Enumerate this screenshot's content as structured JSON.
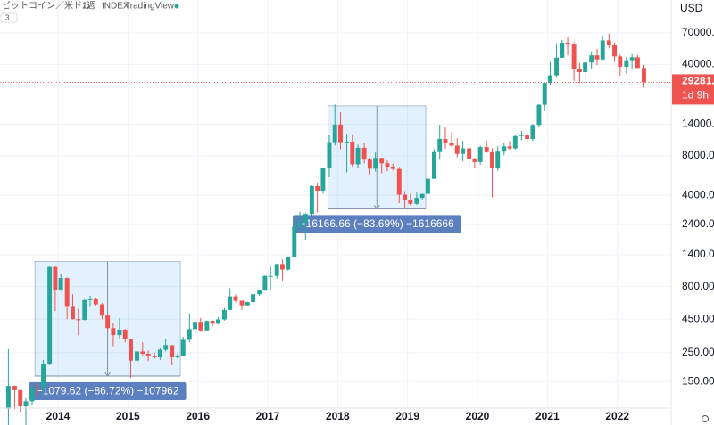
{
  "chart_data": {
    "type": "candlestick",
    "title": "ビットコイン／米ドル",
    "interval": "1週",
    "source": "INDEX",
    "publisher": "TradingView",
    "collapsed_count": 3,
    "currency": "USD",
    "countdown": "1d 9h",
    "log_y": true,
    "grid": true,
    "up_color": "#26a69a",
    "down_color": "#ef5350",
    "xlim": [
      2013.17,
      2022.77
    ],
    "ylim": [
      94,
      125000
    ],
    "xticks": [
      2014,
      2015,
      2016,
      2017,
      2018,
      2019,
      2020,
      2021,
      2022
    ],
    "yticks": [
      {
        "value": 70000,
        "label": "70000.00"
      },
      {
        "value": 40000,
        "label": "40000.00"
      },
      {
        "value": 14000,
        "label": "14000.00"
      },
      {
        "value": 8000,
        "label": "8000.00"
      },
      {
        "value": 4000,
        "label": "4000.00"
      },
      {
        "value": 2400,
        "label": "2400.00"
      },
      {
        "value": 1400,
        "label": "1400.00"
      },
      {
        "value": 800,
        "label": "800.00"
      },
      {
        "value": 450,
        "label": "450.00"
      },
      {
        "value": 250,
        "label": "250.00"
      },
      {
        "value": 150,
        "label": "150.00"
      }
    ],
    "current_price": {
      "value": 29281,
      "label": "29281.00"
    },
    "x": [
      2013.29,
      2013.38,
      2013.46,
      2013.54,
      2013.63,
      2013.71,
      2013.79,
      2013.88,
      2013.96,
      2014.04,
      2014.13,
      2014.21,
      2014.29,
      2014.38,
      2014.46,
      2014.54,
      2014.63,
      2014.71,
      2014.79,
      2014.88,
      2014.96,
      2015.04,
      2015.13,
      2015.21,
      2015.29,
      2015.38,
      2015.46,
      2015.54,
      2015.63,
      2015.71,
      2015.79,
      2015.88,
      2015.96,
      2016.04,
      2016.13,
      2016.21,
      2016.29,
      2016.38,
      2016.46,
      2016.54,
      2016.63,
      2016.71,
      2016.79,
      2016.88,
      2016.96,
      2017.04,
      2017.13,
      2017.21,
      2017.29,
      2017.38,
      2017.46,
      2017.54,
      2017.63,
      2017.71,
      2017.79,
      2017.88,
      2017.96,
      2018.04,
      2018.13,
      2018.21,
      2018.29,
      2018.38,
      2018.46,
      2018.54,
      2018.63,
      2018.71,
      2018.79,
      2018.88,
      2018.96,
      2019.04,
      2019.13,
      2019.21,
      2019.29,
      2019.38,
      2019.46,
      2019.54,
      2019.63,
      2019.71,
      2019.79,
      2019.88,
      2019.96,
      2020.04,
      2020.13,
      2020.21,
      2020.29,
      2020.38,
      2020.46,
      2020.54,
      2020.63,
      2020.71,
      2020.79,
      2020.88,
      2020.96,
      2021.04,
      2021.13,
      2021.21,
      2021.29,
      2021.38,
      2021.46,
      2021.54,
      2021.63,
      2021.71,
      2021.79,
      2021.88,
      2021.96,
      2022.04,
      2022.13,
      2022.21,
      2022.29,
      2022.38
    ],
    "open": [
      93,
      139,
      129,
      97,
      106,
      135,
      133,
      204,
      1130,
      760,
      930,
      560,
      450,
      445,
      630,
      640,
      585,
      480,
      385,
      340,
      375,
      320,
      217,
      255,
      245,
      235,
      230,
      263,
      285,
      230,
      236,
      313,
      378,
      430,
      370,
      437,
      416,
      448,
      530,
      673,
      624,
      575,
      608,
      700,
      745,
      965,
      965,
      1190,
      1080,
      1350,
      2300,
      2480,
      2875,
      4700,
      4340,
      6450,
      10200,
      13900,
      10200,
      10300,
      6900,
      9240,
      7490,
      6390,
      7730,
      7030,
      6630,
      6370,
      4040,
      3700,
      3440,
      3820,
      4100,
      5350,
      8560,
      10800,
      10100,
      9600,
      8300,
      9150,
      7550,
      7190,
      9350,
      8550,
      6420,
      8630,
      9460,
      9140,
      11350,
      11650,
      10780,
      13800,
      19700,
      28990,
      33100,
      45140,
      58800,
      57750,
      37300,
      35040,
      41460,
      47100,
      43800,
      61300,
      57000,
      46200,
      38500,
      43200,
      45500,
      37700
    ],
    "high": [
      266,
      140,
      130,
      112,
      140,
      145,
      220,
      1150,
      1160,
      1000,
      940,
      700,
      540,
      640,
      680,
      660,
      600,
      500,
      420,
      460,
      380,
      320,
      300,
      300,
      260,
      250,
      270,
      315,
      285,
      245,
      330,
      500,
      465,
      460,
      440,
      440,
      465,
      550,
      780,
      700,
      625,
      615,
      720,
      760,
      975,
      1150,
      1200,
      1290,
      1350,
      2750,
      3000,
      2920,
      4750,
      5000,
      6450,
      11500,
      19800,
      17300,
      11800,
      11700,
      9800,
      9990,
      7760,
      8500,
      7760,
      7400,
      7000,
      6600,
      4300,
      4100,
      4200,
      4100,
      5600,
      9000,
      13900,
      13200,
      12300,
      10900,
      10400,
      9500,
      7750,
      9600,
      10500,
      9200,
      9450,
      10000,
      10400,
      11450,
      12470,
      12100,
      14100,
      19900,
      29300,
      41950,
      58350,
      61800,
      64850,
      59500,
      41300,
      42400,
      50500,
      52900,
      67000,
      69000,
      59100,
      47900,
      45800,
      48200,
      47400,
      40000
    ],
    "low": [
      50,
      92,
      88,
      65,
      100,
      115,
      110,
      200,
      520,
      740,
      450,
      450,
      340,
      440,
      560,
      570,
      450,
      360,
      280,
      320,
      300,
      160,
      200,
      235,
      215,
      225,
      220,
      255,
      200,
      225,
      235,
      300,
      350,
      360,
      365,
      400,
      410,
      440,
      530,
      605,
      530,
      570,
      605,
      680,
      745,
      750,
      920,
      890,
      1060,
      1350,
      2100,
      1830,
      2700,
      2950,
      4110,
      5500,
      9600,
      9000,
      6000,
      6600,
      6500,
      7000,
      5760,
      6070,
      5880,
      6100,
      6200,
      3480,
      3130,
      3350,
      3380,
      3700,
      4080,
      5330,
      7500,
      9100,
      9400,
      7800,
      7300,
      6500,
      6430,
      6850,
      8450,
      3850,
      6150,
      8100,
      8900,
      8950,
      10550,
      9880,
      10400,
      13200,
      17600,
      28150,
      32300,
      45000,
      47000,
      30000,
      28800,
      29300,
      37300,
      39600,
      43300,
      53250,
      42000,
      32900,
      34300,
      37200,
      37700,
      26700
    ],
    "close": [
      139,
      129,
      97,
      106,
      135,
      133,
      204,
      1130,
      760,
      930,
      560,
      450,
      445,
      630,
      640,
      585,
      480,
      385,
      340,
      375,
      320,
      217,
      255,
      245,
      235,
      230,
      263,
      285,
      230,
      236,
      313,
      378,
      430,
      370,
      437,
      416,
      448,
      530,
      673,
      624,
      575,
      608,
      700,
      745,
      965,
      965,
      1190,
      1080,
      1350,
      2300,
      2480,
      2875,
      4700,
      4340,
      6450,
      10200,
      13900,
      10200,
      10300,
      6900,
      9240,
      7490,
      6390,
      7730,
      7030,
      6630,
      6370,
      4040,
      3700,
      3440,
      3820,
      4100,
      5350,
      8560,
      10800,
      10100,
      9600,
      8300,
      9150,
      7550,
      7190,
      9350,
      8550,
      6420,
      8630,
      9460,
      9140,
      11350,
      11650,
      10780,
      13800,
      19700,
      28990,
      33100,
      45140,
      58800,
      57750,
      37300,
      35040,
      41460,
      47100,
      43800,
      61300,
      57000,
      46200,
      38500,
      43200,
      45500,
      37700,
      29281
    ],
    "annotations": [
      {
        "label": "−1079.62 (−86.72%) −107962",
        "x": [
          2013.67,
          2015.75
        ],
        "y": [
          1245,
          165.4
        ]
      },
      {
        "label": "−16166.66 (−83.69%) −1616666",
        "x": [
          2017.86,
          2019.26
        ],
        "y": [
          19318,
          3151.6
        ]
      }
    ]
  }
}
